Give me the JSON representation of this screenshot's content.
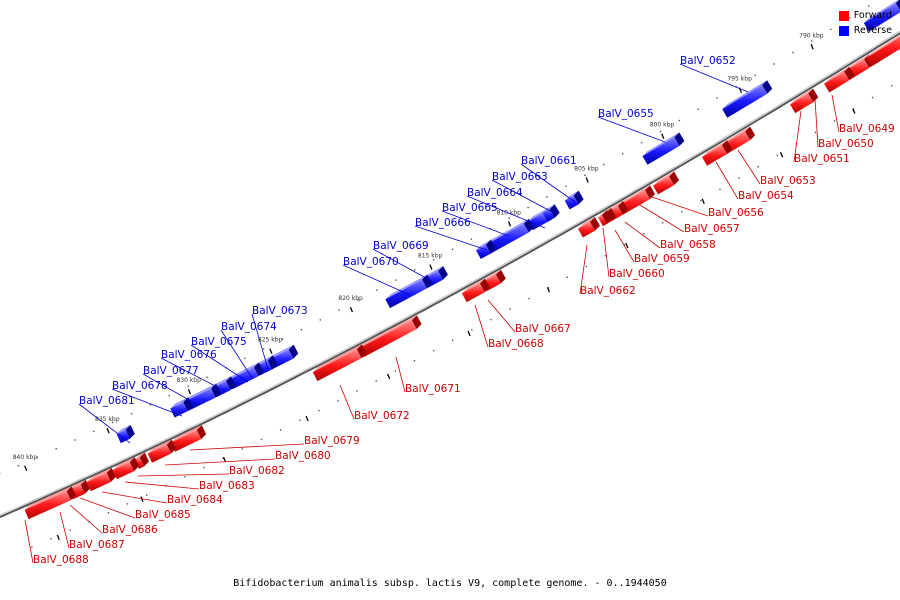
{
  "caption": "Bifidobacterium animalis subsp. lactis V9, complete genome. - 0..1944050",
  "legend": [
    {
      "label": "Forward",
      "color": "#ff0000"
    },
    {
      "label": "Reverse",
      "color": "#0000ff"
    }
  ],
  "colors": {
    "forward": "#ff0000",
    "reverse": "#0000ff",
    "backbone": "#888888"
  },
  "ticks": [
    "790 kbp",
    "795 kbp",
    "800 kbp",
    "805 kbp",
    "810 kbp",
    "815 kbp",
    "820 kbp",
    "825 kbp",
    "830 kbp",
    "835 kbp",
    "840 kbp"
  ],
  "genes_reverse": [
    "BalV_0652",
    "BalV_0655",
    "BalV_0661",
    "BalV_0663",
    "BalV_0664",
    "BalV_0665",
    "BalV_0666",
    "BalV_0669",
    "BalV_0670",
    "BalV_0673",
    "BalV_0674",
    "BalV_0675",
    "BalV_0676",
    "BalV_0677",
    "BalV_0678",
    "BalV_0681"
  ],
  "genes_forward": [
    "BalV_0649",
    "BalV_0650",
    "BalV_0651",
    "BalV_0653",
    "BalV_0654",
    "BalV_0656",
    "BalV_0657",
    "BalV_0658",
    "BalV_0659",
    "BalV_0660",
    "BalV_0662",
    "BalV_0667",
    "BalV_0668",
    "BalV_0671",
    "BalV_0672",
    "BalV_0679",
    "BalV_0680",
    "BalV_0682",
    "BalV_0683",
    "BalV_0684",
    "BalV_0685",
    "BalV_0686",
    "BalV_0687",
    "BalV_0688"
  ]
}
